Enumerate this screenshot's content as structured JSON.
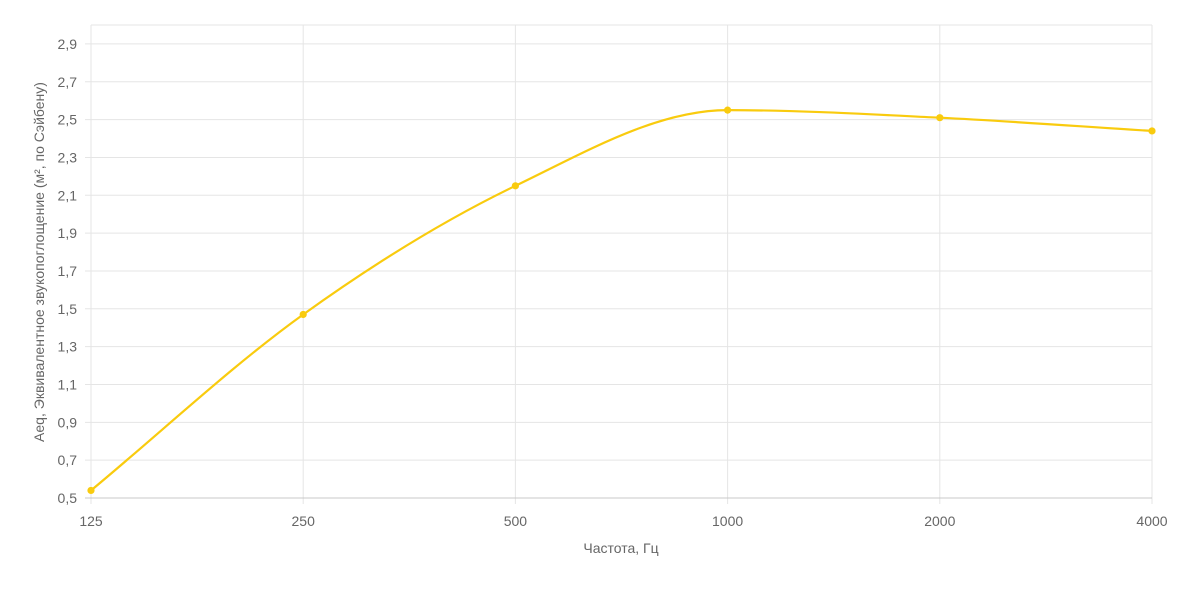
{
  "chart_data": {
    "type": "line",
    "title": "",
    "xlabel": "Частота, Гц",
    "ylabel": "Aeq, Эквивалентное звукопоглощение (м², по Сэйбену)",
    "categories": [
      "125",
      "250",
      "500",
      "1000",
      "2000",
      "4000"
    ],
    "series": [
      {
        "values": [
          0.54,
          1.47,
          2.15,
          2.55,
          2.51,
          2.44
        ],
        "color": "#F9CB0E"
      }
    ],
    "ylim": [
      0.5,
      3.0
    ],
    "yticks": [
      "0,5",
      "0,7",
      "0,9",
      "1,1",
      "1,3",
      "1,5",
      "1,7",
      "1,9",
      "2,1",
      "2,3",
      "2,5",
      "2,7",
      "2,9"
    ],
    "grid": true,
    "legend": "none",
    "colors": {
      "grid": "#e5e5e5",
      "axis": "#c8c8c8",
      "tick_text": "#666666"
    }
  }
}
